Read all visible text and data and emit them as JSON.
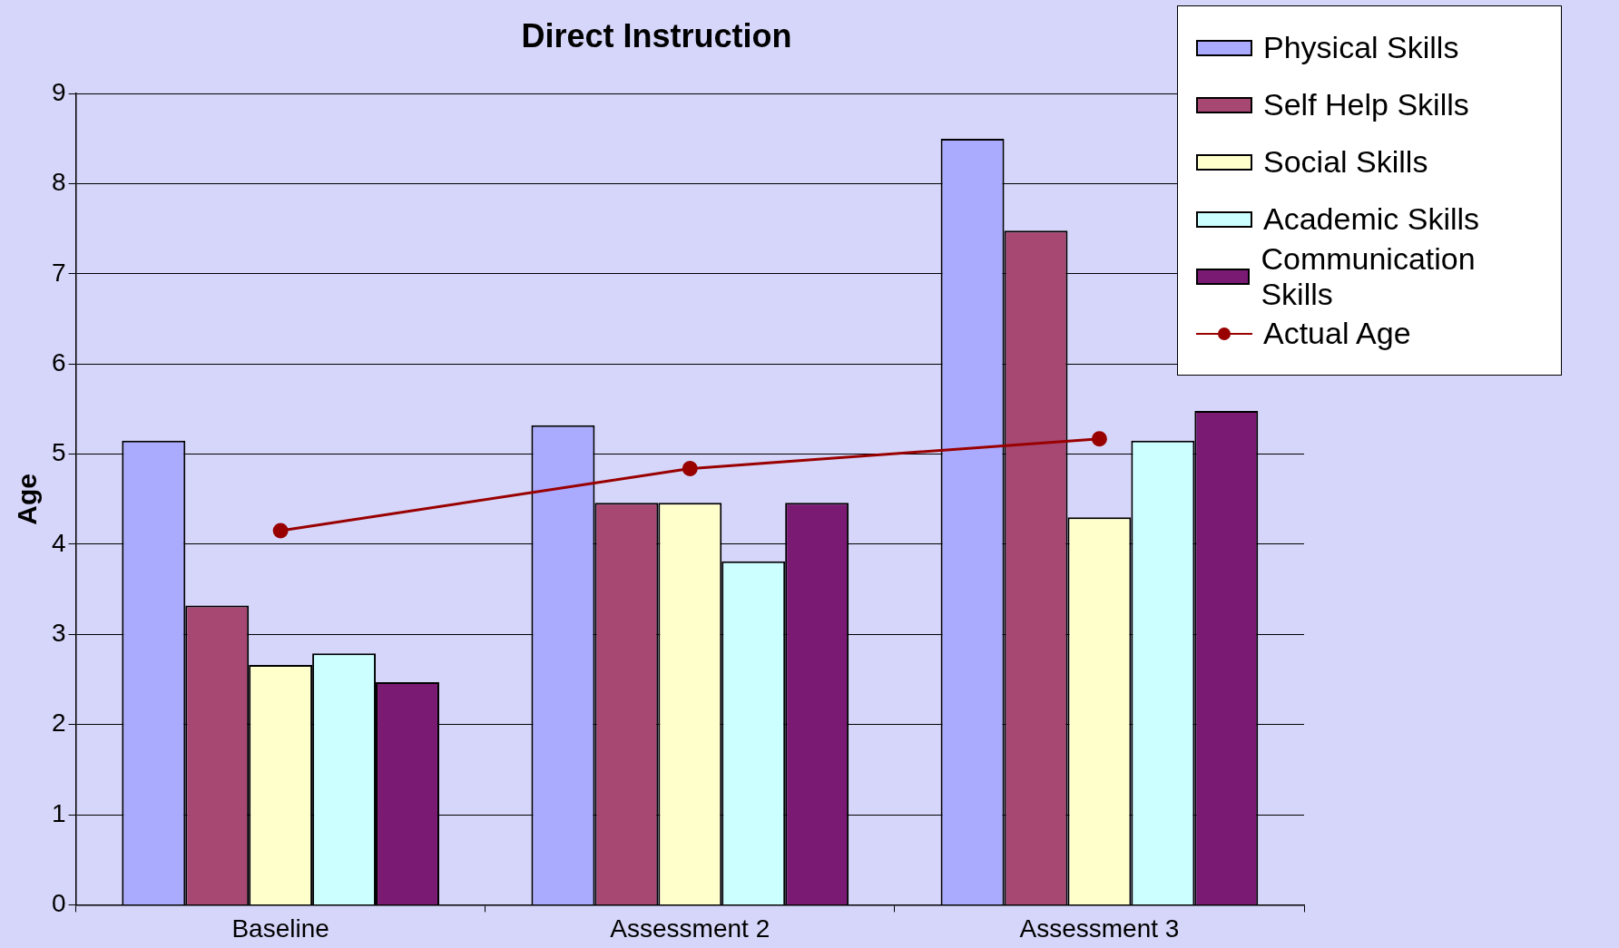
{
  "chart_data": {
    "type": "bar",
    "title": "Direct Instruction",
    "ylabel": "Age",
    "categories": [
      "Baseline",
      "Assessment 2",
      "Assessment 3"
    ],
    "series": [
      {
        "name": "Physical Skills",
        "color": "#aaaaff",
        "values": [
          5.15,
          5.32,
          8.5
        ]
      },
      {
        "name": "Self Help Skills",
        "color": "#a64872",
        "values": [
          3.32,
          4.46,
          7.48
        ]
      },
      {
        "name": "Social Skills",
        "color": "#ffffcc",
        "values": [
          2.66,
          4.46,
          4.3
        ]
      },
      {
        "name": "Academic Skills",
        "color": "#ccffff",
        "values": [
          2.79,
          3.81,
          5.15
        ]
      },
      {
        "name": "Communication Skills",
        "color": "#7a1a73",
        "values": [
          2.47,
          4.46,
          5.48
        ]
      },
      {
        "name": "Actual Age",
        "type": "line",
        "color": "#990000",
        "values": [
          4.15,
          4.84,
          5.17
        ]
      }
    ],
    "ylim": [
      0,
      9
    ],
    "yticks": [
      0,
      1,
      2,
      3,
      4,
      5,
      6,
      7,
      8,
      9
    ],
    "grid": "y",
    "legend": "top right",
    "marker": "circle"
  }
}
